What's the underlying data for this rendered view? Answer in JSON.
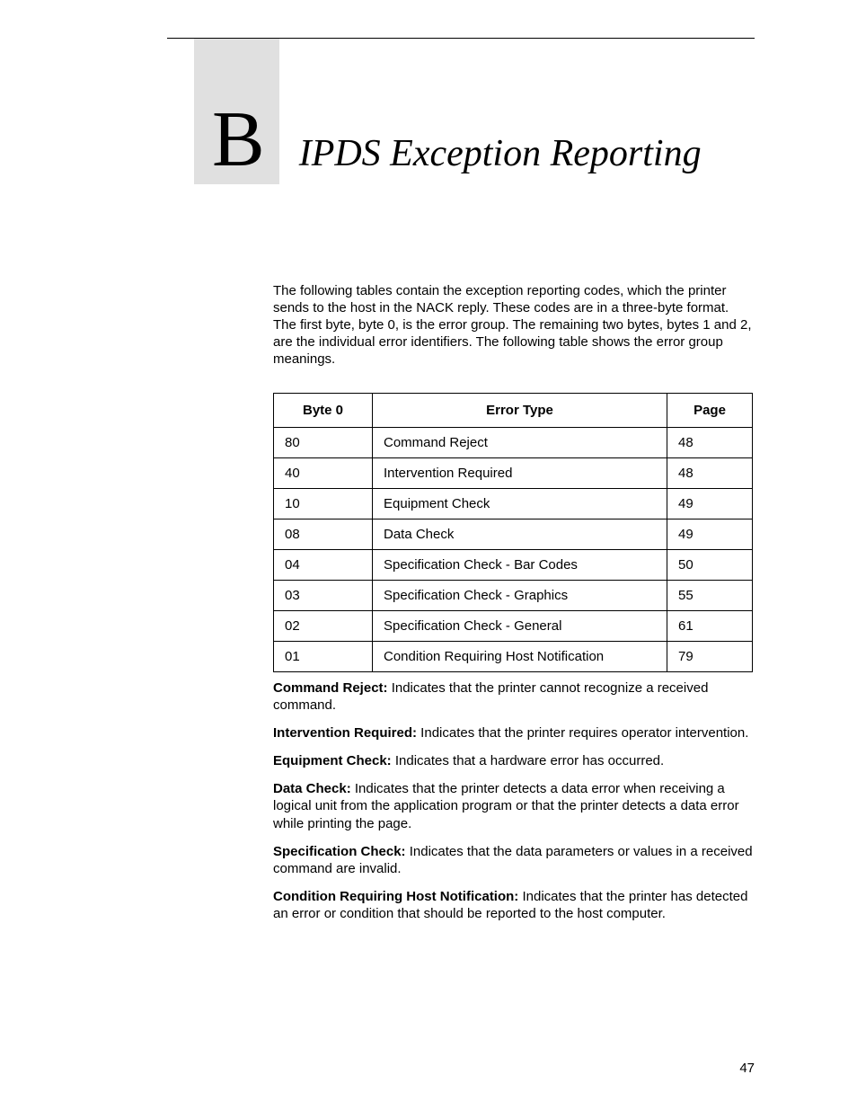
{
  "appendix": {
    "letter": "B",
    "title": "IPDS Exception Reporting"
  },
  "intro": "The following tables contain the exception reporting codes, which the printer sends to the host in the NACK reply. These codes are in a three-byte format. The first byte, byte 0, is the error group. The remaining two bytes, bytes 1 and 2, are the individual error identifiers. The following table shows the error group meanings.",
  "table": {
    "headers": {
      "col0": "Byte 0",
      "col1": "Error Type",
      "col2": "Page"
    },
    "rows": [
      {
        "byte": "80",
        "type": "Command Reject",
        "page": "48"
      },
      {
        "byte": "40",
        "type": "Intervention Required",
        "page": "48"
      },
      {
        "byte": "10",
        "type": "Equipment Check",
        "page": "49"
      },
      {
        "byte": "08",
        "type": "Data Check",
        "page": "49"
      },
      {
        "byte": "04",
        "type": "Specification Check - Bar Codes",
        "page": "50"
      },
      {
        "byte": "03",
        "type": "Specification Check - Graphics",
        "page": "55"
      },
      {
        "byte": "02",
        "type": "Specification Check - General",
        "page": "61"
      },
      {
        "byte": "01",
        "type": "Condition Requiring Host Notification",
        "page": "79"
      }
    ]
  },
  "definitions": [
    {
      "term": "Command Reject:",
      "desc": "  Indicates that the printer cannot recognize a received command."
    },
    {
      "term": "Intervention Required:",
      "desc": "  Indicates that the printer requires operator intervention."
    },
    {
      "term": "Equipment Check:",
      "desc": "  Indicates that a hardware error has occurred."
    },
    {
      "term": "Data Check:",
      "desc": "  Indicates that the printer detects a data error when receiving a logical unit from the application program or that the printer detects a data error while printing the page."
    },
    {
      "term": "Specification Check:",
      "desc": "  Indicates that the data parameters or values in a received command are invalid."
    },
    {
      "term": "Condition Requiring Host Notification:",
      "desc": "  Indicates that the printer has detected an error or condition that should be reported to the host computer."
    }
  ],
  "page_number": "47"
}
